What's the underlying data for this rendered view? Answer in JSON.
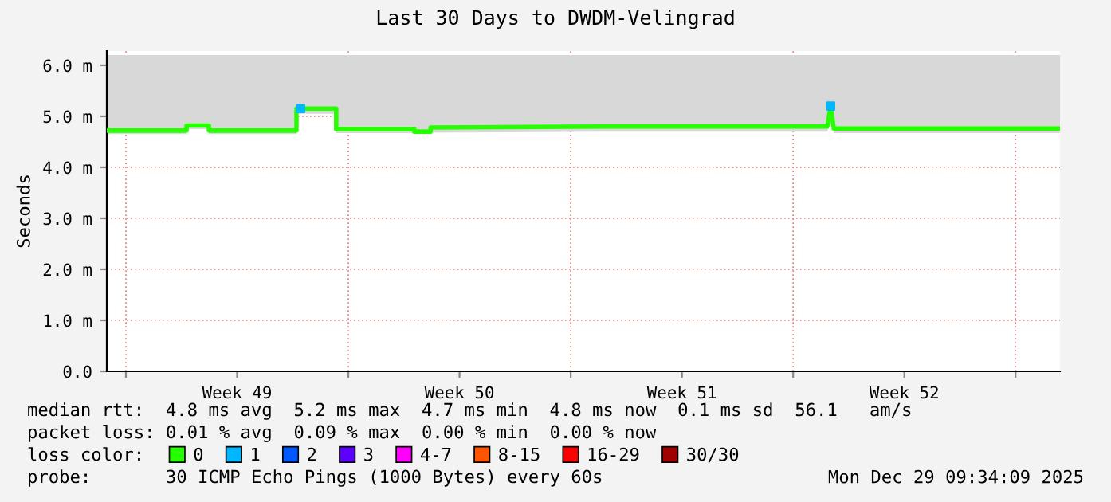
{
  "chart_data": {
    "type": "line",
    "title": "Last 30 Days to DWDM-Velingrad",
    "ylabel": "Seconds",
    "legend_title": "loss color:",
    "xlim": [
      "2025-11-29T09:34",
      "2025-12-29T09:34"
    ],
    "xticks": [
      {
        "value": "2025-11-30T00:00",
        "label": null
      },
      {
        "value": "2025-12-03T12:00",
        "label": "Week 49"
      },
      {
        "value": "2025-12-07T00:00",
        "label": null
      },
      {
        "value": "2025-12-10T12:00",
        "label": "Week 50"
      },
      {
        "value": "2025-12-14T00:00",
        "label": null
      },
      {
        "value": "2025-12-17T12:00",
        "label": "Week 51"
      },
      {
        "value": "2025-12-21T00:00",
        "label": null
      },
      {
        "value": "2025-12-24T12:00",
        "label": "Week 52"
      },
      {
        "value": "2025-12-28T00:00",
        "label": null
      }
    ],
    "ylim": [
      0,
      6.28
    ],
    "yticks": [
      {
        "value": 0,
        "label": "0.0"
      },
      {
        "value": 1,
        "label": "1.0 m"
      },
      {
        "value": 2,
        "label": "2.0 m"
      },
      {
        "value": 3,
        "label": "3.0 m"
      },
      {
        "value": 4,
        "label": "4.0 m"
      },
      {
        "value": 5,
        "label": "5.0 m"
      },
      {
        "value": 6,
        "label": "6.0 m"
      }
    ],
    "grid": true,
    "legend": "bottom",
    "series": [
      {
        "name": "0",
        "color": "#26ff00",
        "line_style": "solid",
        "x": [
          "2025-11-29T09:34",
          "2025-12-01T21:50",
          "2025-12-01T21:50",
          "2025-12-02T14:40",
          "2025-12-02T14:40",
          "2025-12-05T08:50",
          "2025-12-05T08:50",
          "2025-12-06T14:50",
          "2025-12-06T14:50",
          "2025-12-09T01:50",
          "2025-12-09T01:50",
          "2025-12-09T14:10",
          "2025-12-09T14:10",
          "2025-12-15T00:00",
          "2025-12-22T01:50",
          "2025-12-22T04:20",
          "2025-12-22T06:40",
          "2025-12-29T09:34"
        ],
        "values": [
          4.72,
          4.72,
          4.82,
          4.82,
          4.72,
          4.72,
          5.15,
          5.15,
          4.75,
          4.75,
          4.7,
          4.7,
          4.78,
          4.8,
          4.8,
          5.2,
          4.76,
          4.76
        ],
        "lower": [
          4.65,
          4.65,
          4.75,
          4.75,
          4.65,
          4.65,
          5.05,
          5.05,
          4.67,
          4.67,
          4.65,
          4.65,
          4.68,
          4.7,
          4.7,
          4.9,
          4.67,
          4.67
        ],
        "upper": [
          6.2,
          6.2,
          6.2,
          6.2,
          6.2,
          6.2,
          6.2,
          6.2,
          6.2,
          6.2,
          6.2,
          6.2,
          6.2,
          6.2,
          6.2,
          6.2,
          6.2,
          6.2
        ]
      },
      {
        "name": "1",
        "color": "#00b8ff",
        "type": "scatter",
        "marker": "square",
        "x": [
          "2025-12-05T12:00",
          "2025-12-22T04:20"
        ],
        "values": [
          5.15,
          5.2
        ]
      },
      {
        "name": "2",
        "color": "#0059ff",
        "type": "scatter",
        "marker": "square"
      },
      {
        "name": "3",
        "color": "#5e00ff",
        "type": "scatter",
        "marker": "square"
      },
      {
        "name": "4-7",
        "color": "#ff00ff",
        "type": "scatter",
        "marker": "square"
      },
      {
        "name": "8-15",
        "color": "#ff5500",
        "type": "scatter",
        "marker": "square"
      },
      {
        "name": "16-29",
        "color": "#ff0000",
        "type": "scatter",
        "marker": "square"
      },
      {
        "name": "30/30",
        "color": "#a10000",
        "type": "scatter",
        "marker": "square"
      }
    ],
    "annotations": [
      "median rtt:  4.8 ms avg  5.2 ms max  4.7 ms min  4.8 ms now  0.1 ms sd  56.1   am/s",
      "packet loss: 0.01 % avg  0.09 % max  0.00 % min  0.00 % now",
      "probe:       30 ICMP Echo Pings (1000 Bytes) every 60s",
      "Mon Dec 29 09:34:09 2025"
    ]
  }
}
